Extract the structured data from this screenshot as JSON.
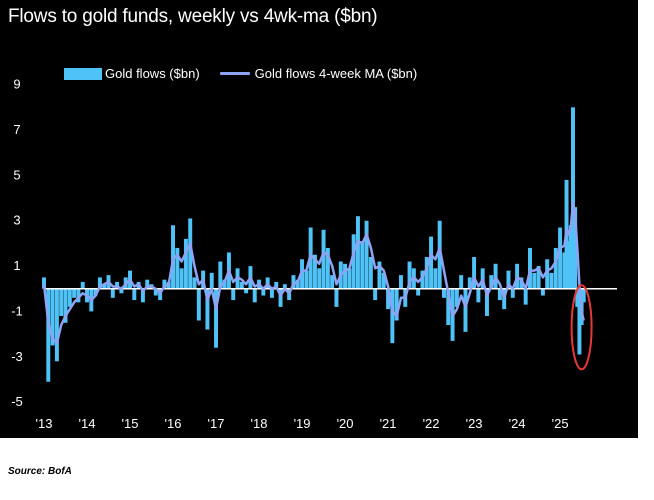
{
  "colors": {
    "background": "#000000",
    "bars": "#4FC3F7",
    "ma_line": "#8FA3F5",
    "zero_line": "#ffffff",
    "highlight": "#e53935",
    "text": "#ffffff"
  },
  "source": "Source: BofA",
  "chart_data": {
    "type": "bar",
    "title": "Flows to gold funds, weekly vs 4wk-ma ($bn)",
    "xlabel": "",
    "ylabel": "",
    "ylim": [
      -5.7,
      10
    ],
    "y_ticks": [
      9,
      7,
      5,
      3,
      1,
      -1,
      -3,
      -5
    ],
    "y_tick_labels": [
      "9",
      "7",
      "5",
      "3",
      "1",
      "-1",
      "-3",
      "-5"
    ],
    "x_ticks": [
      2013,
      2014,
      2015,
      2016,
      2017,
      2018,
      2019,
      2020,
      2021,
      2022,
      2023,
      2024,
      2025
    ],
    "x_tick_labels": [
      "'13",
      "'14",
      "'15",
      "'16",
      "'17",
      "'18",
      "'19",
      "'20",
      "'21",
      "'22",
      "'23",
      "'24",
      "'25"
    ],
    "xlim": [
      2013,
      2026.3
    ],
    "legend": {
      "position": "top-left",
      "entries": [
        "Gold flows ($bn)",
        "Gold flows 4-week MA ($bn)"
      ]
    },
    "series": [
      {
        "name": "Gold flows ($bn)",
        "kind": "bar",
        "x": [
          2013.0,
          2013.1,
          2013.2,
          2013.3,
          2013.4,
          2013.5,
          2013.6,
          2013.7,
          2013.8,
          2013.9,
          2014.0,
          2014.1,
          2014.2,
          2014.3,
          2014.4,
          2014.5,
          2014.6,
          2014.7,
          2014.8,
          2014.9,
          2015.0,
          2015.1,
          2015.2,
          2015.3,
          2015.4,
          2015.5,
          2015.6,
          2015.7,
          2015.8,
          2015.9,
          2016.0,
          2016.1,
          2016.2,
          2016.3,
          2016.4,
          2016.5,
          2016.6,
          2016.7,
          2016.8,
          2016.9,
          2017.0,
          2017.1,
          2017.2,
          2017.3,
          2017.4,
          2017.5,
          2017.6,
          2017.7,
          2017.8,
          2017.9,
          2018.0,
          2018.1,
          2018.2,
          2018.3,
          2018.4,
          2018.5,
          2018.6,
          2018.7,
          2018.8,
          2018.9,
          2019.0,
          2019.1,
          2019.2,
          2019.3,
          2019.4,
          2019.5,
          2019.6,
          2019.7,
          2019.8,
          2019.9,
          2020.0,
          2020.1,
          2020.2,
          2020.3,
          2020.4,
          2020.5,
          2020.6,
          2020.7,
          2020.8,
          2020.9,
          2021.0,
          2021.1,
          2021.2,
          2021.3,
          2021.4,
          2021.5,
          2021.6,
          2021.7,
          2021.8,
          2021.9,
          2022.0,
          2022.1,
          2022.2,
          2022.3,
          2022.4,
          2022.5,
          2022.6,
          2022.7,
          2022.8,
          2022.9,
          2023.0,
          2023.1,
          2023.2,
          2023.3,
          2023.4,
          2023.5,
          2023.6,
          2023.7,
          2023.8,
          2023.9,
          2024.0,
          2024.1,
          2024.2,
          2024.3,
          2024.4,
          2024.5,
          2024.6,
          2024.7,
          2024.8,
          2024.9,
          2025.0,
          2025.1,
          2025.15,
          2025.2,
          2025.25,
          2025.3,
          2025.35,
          2025.4,
          2025.45,
          2025.5,
          2025.55
        ],
        "values": [
          0.5,
          -4.1,
          -2.5,
          -3.2,
          -1.2,
          -1.5,
          -0.8,
          -0.4,
          -0.6,
          0.3,
          -0.6,
          -1.0,
          -0.3,
          0.5,
          0.2,
          0.6,
          -0.4,
          0.3,
          -0.2,
          0.5,
          0.8,
          -0.5,
          0.3,
          -0.6,
          0.4,
          0.2,
          -0.3,
          -0.5,
          0.4,
          0.3,
          2.8,
          1.8,
          0.9,
          2.2,
          3.1,
          0.5,
          -1.4,
          0.8,
          -1.8,
          0.7,
          -2.6,
          1.2,
          0.4,
          1.6,
          -0.5,
          0.9,
          0.3,
          -0.2,
          1.0,
          -0.6,
          0.4,
          -0.3,
          0.5,
          -0.4,
          0.3,
          -0.8,
          0.2,
          -0.5,
          0.6,
          0.4,
          1.3,
          0.8,
          2.7,
          1.5,
          0.9,
          2.6,
          1.8,
          0.6,
          -0.8,
          1.2,
          1.1,
          0.9,
          2.4,
          3.2,
          2.1,
          3.0,
          1.4,
          -0.5,
          1.2,
          0.7,
          -0.9,
          -2.4,
          -1.4,
          0.6,
          -0.8,
          1.2,
          0.9,
          -0.3,
          0.8,
          1.4,
          2.3,
          0.9,
          3.0,
          -0.4,
          -1.6,
          -2.3,
          -0.8,
          0.6,
          -1.9,
          0.5,
          1.4,
          -0.6,
          0.9,
          -1.2,
          0.6,
          1.1,
          -0.5,
          -0.9,
          0.8,
          -0.4,
          1.1,
          0.5,
          -0.7,
          1.8,
          0.7,
          1.0,
          -0.3,
          1.3,
          0.7,
          1.8,
          2.7,
          1.6,
          4.8,
          2.1,
          2.8,
          8.0,
          3.6,
          -0.8,
          -2.9,
          -1.6,
          -0.6
        ]
      },
      {
        "name": "Gold flows 4-week MA ($bn)",
        "kind": "line",
        "x": [
          2013.0,
          2013.1,
          2013.2,
          2013.3,
          2013.4,
          2013.5,
          2013.6,
          2013.7,
          2013.8,
          2013.9,
          2014.0,
          2014.1,
          2014.2,
          2014.3,
          2014.4,
          2014.5,
          2014.6,
          2014.7,
          2014.8,
          2014.9,
          2015.0,
          2015.1,
          2015.2,
          2015.3,
          2015.4,
          2015.5,
          2015.6,
          2015.7,
          2015.8,
          2015.9,
          2016.0,
          2016.1,
          2016.2,
          2016.3,
          2016.4,
          2016.5,
          2016.6,
          2016.7,
          2016.8,
          2016.9,
          2017.0,
          2017.1,
          2017.2,
          2017.3,
          2017.4,
          2017.5,
          2017.6,
          2017.7,
          2017.8,
          2017.9,
          2018.0,
          2018.1,
          2018.2,
          2018.3,
          2018.4,
          2018.5,
          2018.6,
          2018.7,
          2018.8,
          2018.9,
          2019.0,
          2019.1,
          2019.2,
          2019.3,
          2019.4,
          2019.5,
          2019.6,
          2019.7,
          2019.8,
          2019.9,
          2020.0,
          2020.1,
          2020.2,
          2020.3,
          2020.4,
          2020.5,
          2020.6,
          2020.7,
          2020.8,
          2020.9,
          2021.0,
          2021.1,
          2021.2,
          2021.3,
          2021.4,
          2021.5,
          2021.6,
          2021.7,
          2021.8,
          2021.9,
          2022.0,
          2022.1,
          2022.2,
          2022.3,
          2022.4,
          2022.5,
          2022.6,
          2022.7,
          2022.8,
          2022.9,
          2023.0,
          2023.1,
          2023.2,
          2023.3,
          2023.4,
          2023.5,
          2023.6,
          2023.7,
          2023.8,
          2023.9,
          2024.0,
          2024.1,
          2024.2,
          2024.3,
          2024.4,
          2024.5,
          2024.6,
          2024.7,
          2024.8,
          2024.9,
          2025.0,
          2025.1,
          2025.15,
          2025.2,
          2025.25,
          2025.3,
          2025.35,
          2025.4,
          2025.45,
          2025.5,
          2025.55
        ],
        "values": [
          0.2,
          -1.5,
          -2.2,
          -2.4,
          -1.6,
          -1.2,
          -0.9,
          -0.6,
          -0.4,
          -0.2,
          -0.3,
          -0.5,
          -0.3,
          0.1,
          0.2,
          0.3,
          0.1,
          0.1,
          0.0,
          0.2,
          0.4,
          0.1,
          0.2,
          -0.1,
          0.1,
          0.1,
          0.0,
          -0.2,
          0.1,
          0.2,
          1.3,
          1.5,
          1.2,
          1.6,
          2.0,
          1.0,
          0.2,
          0.4,
          -0.5,
          0.0,
          -0.9,
          0.1,
          0.3,
          0.8,
          0.3,
          0.5,
          0.4,
          0.2,
          0.5,
          0.1,
          0.2,
          0.0,
          0.2,
          0.0,
          0.1,
          -0.3,
          0.0,
          -0.2,
          0.2,
          0.3,
          0.8,
          0.8,
          1.5,
          1.3,
          1.1,
          1.6,
          1.5,
          1.0,
          0.2,
          0.6,
          0.8,
          0.9,
          1.6,
          2.1,
          2.0,
          2.4,
          1.8,
          0.9,
          1.0,
          0.8,
          0.1,
          -1.0,
          -1.2,
          -0.4,
          -0.4,
          0.3,
          0.5,
          0.3,
          0.5,
          0.9,
          1.5,
          1.3,
          1.8,
          0.8,
          -0.2,
          -1.2,
          -0.9,
          -0.3,
          -0.8,
          -0.2,
          0.5,
          0.1,
          0.4,
          -0.3,
          0.1,
          0.5,
          0.2,
          -0.4,
          0.2,
          0.0,
          0.5,
          0.4,
          0.0,
          0.8,
          0.8,
          0.9,
          0.5,
          0.8,
          0.9,
          1.2,
          1.8,
          1.9,
          2.6,
          2.4,
          2.7,
          3.8,
          3.3,
          1.8,
          0.2,
          -1.0,
          -1.4
        ]
      }
    ]
  }
}
